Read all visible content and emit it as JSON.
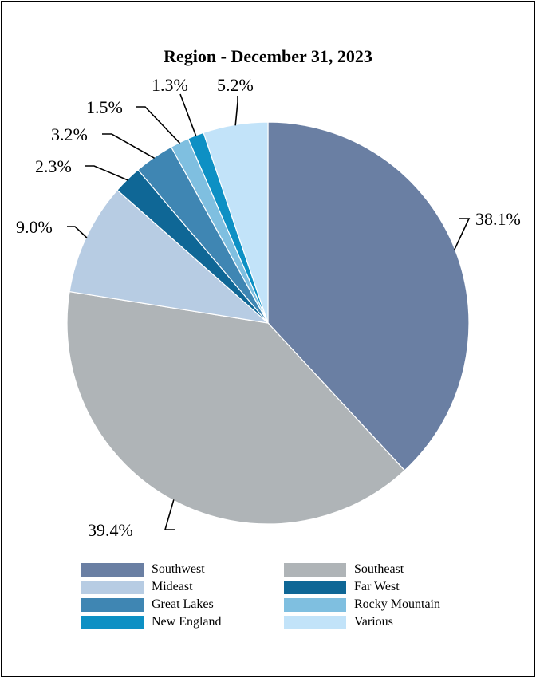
{
  "chart_data": {
    "type": "pie",
    "title": "Region - December 31, 2023",
    "slices": [
      {
        "name": "Southwest",
        "value": 38.1,
        "label": "38.1%",
        "color": "#6a7fa3"
      },
      {
        "name": "Southeast",
        "value": 39.4,
        "label": "39.4%",
        "color": "#afb4b7"
      },
      {
        "name": "Mideast",
        "value": 9.0,
        "label": "9.0%",
        "color": "#b7cce3"
      },
      {
        "name": "Far West",
        "value": 2.3,
        "label": "2.3%",
        "color": "#0f6796"
      },
      {
        "name": "Great Lakes",
        "value": 3.2,
        "label": "3.2%",
        "color": "#3f86b3"
      },
      {
        "name": "Rocky Mountain",
        "value": 1.5,
        "label": "1.5%",
        "color": "#7fbfe0"
      },
      {
        "name": "New England",
        "value": 1.3,
        "label": "1.3%",
        "color": "#0d90c4"
      },
      {
        "name": "Various",
        "value": 5.2,
        "label": "5.2%",
        "color": "#c2e3f9"
      }
    ],
    "legend_position": "bottom"
  }
}
